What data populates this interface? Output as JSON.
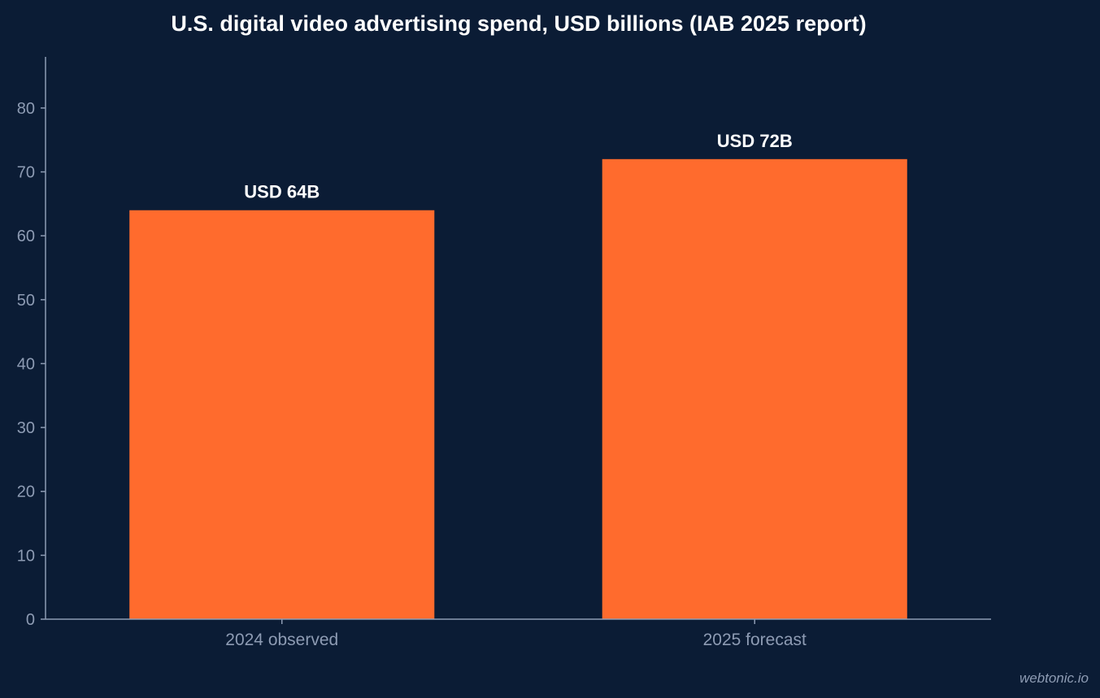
{
  "chart_data": {
    "type": "bar",
    "title": "U.S. digital video advertising spend, USD billions (IAB 2025 report)",
    "categories": [
      "2024 observed",
      "2025 forecast"
    ],
    "values": [
      64,
      72
    ],
    "data_labels": [
      "USD 64B",
      "USD 72B"
    ],
    "xlabel": "",
    "ylabel": "",
    "ylim": [
      0,
      88
    ],
    "yticks": [
      0,
      10,
      20,
      30,
      40,
      50,
      60,
      70,
      80
    ],
    "grid": false,
    "legend": "none",
    "colors": {
      "bar": "#ff6b2d",
      "background": "#0b1c35",
      "axis": "#8d9bb3"
    }
  },
  "credit": "webtonic.io"
}
